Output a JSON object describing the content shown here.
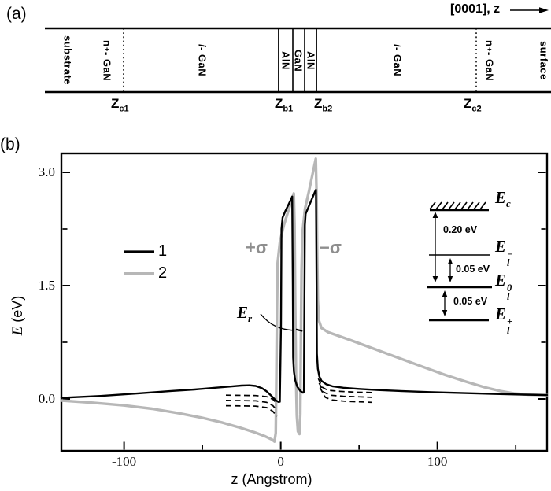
{
  "panel_a": {
    "label": "(a)",
    "direction_label": "[0001], z",
    "layers": [
      {
        "text": "substrate",
        "x": 86
      },
      {
        "head": "n",
        "sup": "+",
        "text": " - GaN",
        "x": 136
      },
      {
        "head": "i",
        "italic": true,
        "text": " - GaN",
        "x": 257
      },
      {
        "text": "AlN",
        "x": 363
      },
      {
        "text": "GaN",
        "x": 379
      },
      {
        "text": "AlN",
        "x": 395
      },
      {
        "head": "i",
        "italic": true,
        "text": " - GaN",
        "x": 505
      },
      {
        "head": "n",
        "sup": "+",
        "text": " - GaN",
        "x": 622
      },
      {
        "text": "surface",
        "x": 691
      }
    ],
    "boundaries": [
      {
        "base": "Z",
        "sub": "c1",
        "x": 141
      },
      {
        "base": "Z",
        "sub": "b1",
        "x": 349
      },
      {
        "base": "Z",
        "sub": "b2",
        "x": 399
      },
      {
        "base": "Z",
        "sub": "c2",
        "x": 589
      }
    ]
  },
  "panel_b": {
    "label": "(b)",
    "legend": [
      {
        "label": "1",
        "color": "#000000"
      },
      {
        "label": "2",
        "color": "#b7b7b7"
      }
    ],
    "plus_sigma": "+σ",
    "minus_sigma": "−σ",
    "er": {
      "base": "E",
      "sub": "r"
    },
    "inset": {
      "levels": [
        {
          "base": "E",
          "sub": "c",
          "sup": ""
        },
        {
          "base": "E",
          "sub": "l",
          "sup": "−"
        },
        {
          "base": "E",
          "sub": "l",
          "sup": "0"
        },
        {
          "base": "E",
          "sub": "l",
          "sup": "+"
        }
      ],
      "gaps": [
        "0.20 eV",
        "0.05 eV",
        "0.05 eV"
      ]
    }
  },
  "chart_data": {
    "type": "line",
    "title": "",
    "xlabel": "z (Angstrom)",
    "ylabel_em": "E",
    "ylabel_rest": " (eV)",
    "xlim": [
      -140,
      170
    ],
    "ylim": [
      -0.6875,
      3.25
    ],
    "grid": false,
    "legend_position": "upper-left-inside",
    "xticks_major": [
      {
        "v": -100,
        "label": "-100"
      },
      {
        "v": 0,
        "label": "0"
      },
      {
        "v": 100,
        "label": "100"
      }
    ],
    "xticks_minor": [
      -50,
      50,
      150
    ],
    "yticks_major": [
      {
        "v": 0.0,
        "label": "0.0"
      },
      {
        "v": 1.5,
        "label": "1.5"
      },
      {
        "v": 3.0,
        "label": "3.0"
      }
    ],
    "yticks_minor": [
      0.75,
      2.25
    ],
    "series": [
      {
        "name": "1",
        "color": "#000000",
        "width": 2.4,
        "points": [
          [
            -140,
            0.015
          ],
          [
            -115,
            0.04
          ],
          [
            -90,
            0.075
          ],
          [
            -70,
            0.105
          ],
          [
            -55,
            0.125
          ],
          [
            -42,
            0.148
          ],
          [
            -32,
            0.165
          ],
          [
            -25,
            0.177
          ],
          [
            -20,
            0.18
          ],
          [
            -16,
            0.172
          ],
          [
            -12,
            0.142
          ],
          [
            -9,
            0.1
          ],
          [
            -6,
            0.042
          ],
          [
            -3.5,
            -0.012
          ],
          [
            -1.5,
            -0.04
          ],
          [
            -0.6,
            -0.038
          ],
          [
            0.2,
            1.0
          ],
          [
            0.5,
            2.25
          ],
          [
            1.2,
            2.4
          ],
          [
            3,
            2.49
          ],
          [
            6.5,
            2.64
          ],
          [
            7.3,
            2.68
          ],
          [
            7.7,
            1.5
          ],
          [
            7.9,
            0.55
          ],
          [
            8.4,
            0.36
          ],
          [
            9.2,
            0.25
          ],
          [
            10.5,
            0.165
          ],
          [
            12.5,
            0.105
          ],
          [
            14.2,
            0.082
          ],
          [
            14.8,
            0.095
          ],
          [
            15.1,
            1.2
          ],
          [
            15.4,
            2.3
          ],
          [
            15.9,
            2.45
          ],
          [
            17.5,
            2.53
          ],
          [
            21.8,
            2.74
          ],
          [
            22.5,
            2.77
          ],
          [
            22.9,
            1.5
          ],
          [
            23.1,
            0.6
          ],
          [
            23.7,
            0.4
          ],
          [
            24.6,
            0.3
          ],
          [
            26,
            0.24
          ],
          [
            29,
            0.195
          ],
          [
            33,
            0.168
          ],
          [
            40,
            0.148
          ],
          [
            50,
            0.132
          ],
          [
            62,
            0.118
          ],
          [
            78,
            0.103
          ],
          [
            95,
            0.091
          ],
          [
            115,
            0.079
          ],
          [
            135,
            0.067
          ],
          [
            155,
            0.057
          ],
          [
            170,
            0.051
          ]
        ]
      },
      {
        "name": "2",
        "color": "#b7b7b7",
        "width": 3.4,
        "points": [
          [
            -140,
            -0.022
          ],
          [
            -120,
            -0.05
          ],
          [
            -100,
            -0.085
          ],
          [
            -82,
            -0.13
          ],
          [
            -65,
            -0.19
          ],
          [
            -50,
            -0.25
          ],
          [
            -37,
            -0.315
          ],
          [
            -26,
            -0.38
          ],
          [
            -17,
            -0.44
          ],
          [
            -10,
            -0.495
          ],
          [
            -5.5,
            -0.54
          ],
          [
            -4,
            -0.565
          ],
          [
            -3.2,
            -0.45
          ],
          [
            -2.8,
            0.3
          ],
          [
            -2.4,
            1.2
          ],
          [
            -2,
            1.8
          ],
          [
            -0.5,
            2.08
          ],
          [
            2,
            2.3
          ],
          [
            5,
            2.5
          ],
          [
            8.3,
            2.72
          ],
          [
            8.8,
            2.3
          ],
          [
            9.2,
            1.3
          ],
          [
            9.7,
            0.3
          ],
          [
            10.3,
            -0.22
          ],
          [
            11,
            -0.43
          ],
          [
            12,
            -0.465
          ],
          [
            12.5,
            -0.2
          ],
          [
            12.9,
            0.8
          ],
          [
            13.3,
            1.7
          ],
          [
            13.9,
            2.2
          ],
          [
            15.5,
            2.52
          ],
          [
            18,
            2.75
          ],
          [
            22.4,
            3.18
          ],
          [
            22.9,
            2.7
          ],
          [
            23.3,
            1.9
          ],
          [
            23.7,
            1.3
          ],
          [
            24.5,
            1.03
          ],
          [
            26,
            0.94
          ],
          [
            30,
            0.885
          ],
          [
            45,
            0.775
          ],
          [
            60,
            0.66
          ],
          [
            75,
            0.545
          ],
          [
            90,
            0.43
          ],
          [
            105,
            0.318
          ],
          [
            118,
            0.23
          ],
          [
            130,
            0.155
          ],
          [
            140,
            0.105
          ],
          [
            149,
            0.072
          ],
          [
            158,
            0.057
          ],
          [
            170,
            0.05
          ]
        ]
      }
    ],
    "dashed_levels": [
      {
        "side": "left",
        "points": [
          [
            -35,
            0.05
          ],
          [
            -16,
            0.045
          ],
          [
            -9,
            0.03
          ],
          [
            -5,
            -0.005
          ],
          [
            -2.5,
            -0.06
          ]
        ]
      },
      {
        "side": "left",
        "points": [
          [
            -35,
            -0.02
          ],
          [
            -16,
            -0.025
          ],
          [
            -9,
            -0.045
          ],
          [
            -5,
            -0.09
          ],
          [
            -2.5,
            -0.15
          ]
        ]
      },
      {
        "side": "left",
        "points": [
          [
            -35,
            -0.09
          ],
          [
            -16,
            -0.095
          ],
          [
            -9,
            -0.115
          ],
          [
            -5,
            -0.165
          ],
          [
            -2.5,
            -0.23
          ]
        ]
      },
      {
        "side": "right",
        "points": [
          [
            24,
            0.27
          ],
          [
            26.5,
            0.155
          ],
          [
            30,
            0.115
          ],
          [
            38,
            0.1
          ],
          [
            48,
            0.09
          ],
          [
            58,
            0.085
          ]
        ]
      },
      {
        "side": "right",
        "points": [
          [
            24.5,
            0.21
          ],
          [
            27.5,
            0.09
          ],
          [
            31.5,
            0.05
          ],
          [
            40,
            0.035
          ],
          [
            50,
            0.028
          ],
          [
            58,
            0.022
          ]
        ]
      },
      {
        "side": "right",
        "points": [
          [
            25,
            0.15
          ],
          [
            28.5,
            0.02
          ],
          [
            33,
            -0.015
          ],
          [
            42,
            -0.032
          ],
          [
            52,
            -0.04
          ],
          [
            58,
            -0.045
          ]
        ]
      }
    ],
    "er_level_points": [
      [
        9.7,
        0.92
      ],
      [
        13.9,
        0.9
      ]
    ]
  }
}
